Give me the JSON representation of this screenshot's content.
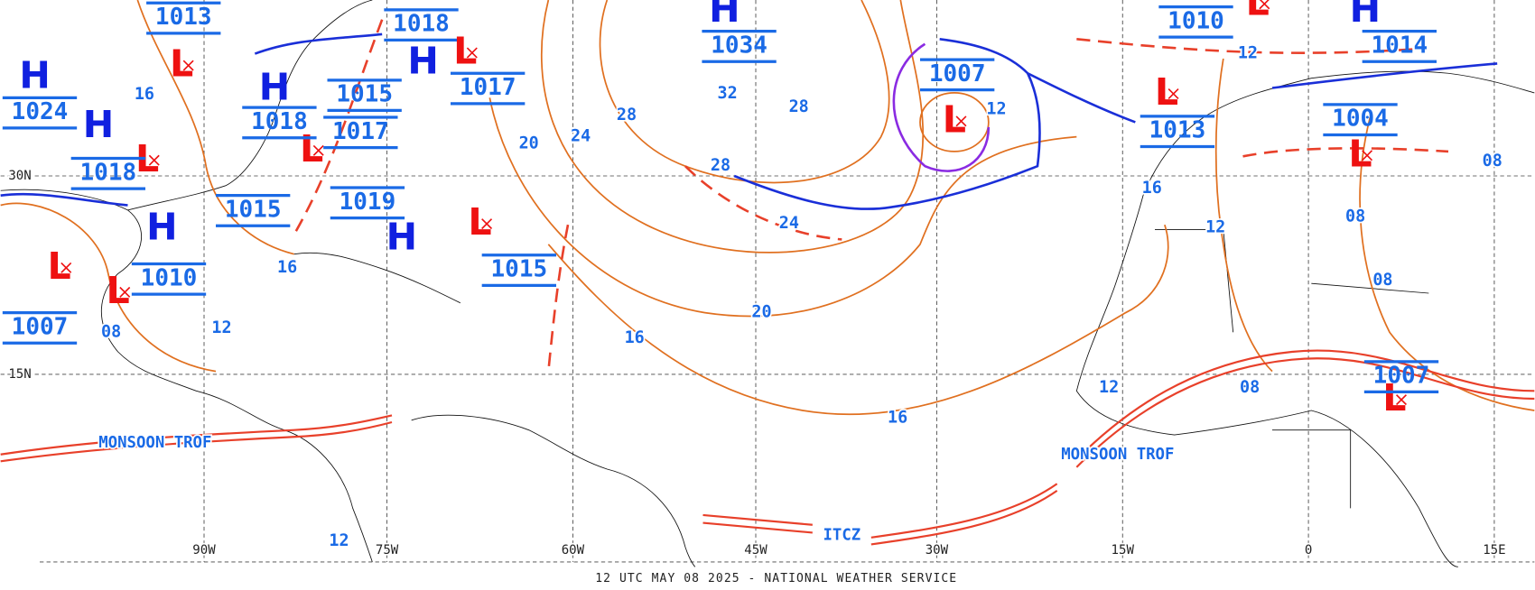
{
  "pressure_centers": [
    {
      "symbol": "H",
      "pressure": 1034
    },
    {
      "symbol": "L",
      "pressure": 1007
    },
    {
      "symbol": "L",
      "pressure": 1010
    },
    {
      "symbol": "H",
      "pressure": 1014
    },
    {
      "symbol": "L",
      "pressure": 1013
    },
    {
      "symbol": "L",
      "pressure": 1004
    },
    {
      "symbol": "L",
      "pressure": 1007
    },
    {
      "symbol": "H",
      "pressure": 1018
    },
    {
      "symbol": "L",
      "pressure": 1017
    },
    {
      "symbol": "H",
      "pressure": 1019
    },
    {
      "symbol": "L",
      "pressure": 1015
    },
    {
      "symbol": "H",
      "pressure": 1015
    },
    {
      "symbol": "L",
      "pressure": 1017
    },
    {
      "symbol": "H",
      "pressure": 1018
    },
    {
      "symbol": "L",
      "pressure": 1013
    },
    {
      "symbol": "H",
      "pressure": 1024
    },
    {
      "symbol": "L",
      "pressure": 1018
    },
    {
      "symbol": "H",
      "pressure": 1015
    },
    {
      "symbol": "L",
      "pressure": 1010
    },
    {
      "symbol": "L",
      "pressure": 1007
    }
  ],
  "isobar_labels": [
    "32",
    "28",
    "28",
    "28",
    "24",
    "24",
    "20",
    "20",
    "16",
    "16",
    "16",
    "16",
    "12",
    "12",
    "12",
    "12",
    "12",
    "12",
    "08",
    "08",
    "08",
    "08",
    "08",
    "16"
  ],
  "longitude_labels": [
    "90W",
    "75W",
    "60W",
    "45W",
    "30W",
    "15W",
    "0",
    "15E"
  ],
  "latitude_labels": [
    "30N",
    "15N"
  ],
  "feature_labels": [
    "MONSOON TROF",
    "MONSOON TROF",
    "ITCZ"
  ],
  "footer": "12 UTC MAY 08 2025 - NATIONAL WEATHER SERVICE"
}
